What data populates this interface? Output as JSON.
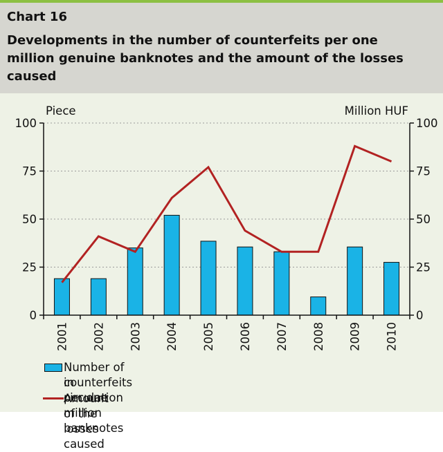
{
  "header": {
    "chart_number": "Chart 16",
    "title": "Developments in the number of counterfeits per one million genuine banknotes and the amount of the losses caused"
  },
  "colors": {
    "bar": "#1ab3e6",
    "line": "#b22222",
    "header_bg": "#d6d6d0",
    "panel_bg": "#eef2e6",
    "accent": "#8cc043"
  },
  "chart_data": {
    "type": "bar",
    "categories": [
      "2001",
      "2002",
      "2003",
      "2004",
      "2005",
      "2006",
      "2007",
      "2008",
      "2009",
      "2010"
    ],
    "series": [
      {
        "name": "Number of counterfeits per one million banknotes in circulation",
        "kind": "bar",
        "axis": "left",
        "values": [
          19,
          19,
          35,
          52,
          38.5,
          35.5,
          33,
          9.5,
          35.5,
          27.5
        ]
      },
      {
        "name": "Amount of the losses caused",
        "kind": "line",
        "axis": "right",
        "values": [
          17,
          41,
          33,
          61,
          77,
          44,
          33,
          33,
          88,
          80
        ]
      }
    ],
    "y_left": {
      "label": "Piece",
      "range": [
        0,
        100
      ],
      "ticks": [
        "0",
        "25",
        "50",
        "75",
        "100"
      ]
    },
    "y_right": {
      "label": "Million HUF",
      "range": [
        0,
        100
      ],
      "ticks": [
        "0",
        "25",
        "50",
        "75",
        "100"
      ]
    },
    "grid": "horizontal dashed",
    "legend": "bottom",
    "legend_labels": {
      "bar_line1": "Number of counterfeits per one million banknotes",
      "bar_line2": "in circulation",
      "line": "Amount of the losses caused"
    }
  }
}
